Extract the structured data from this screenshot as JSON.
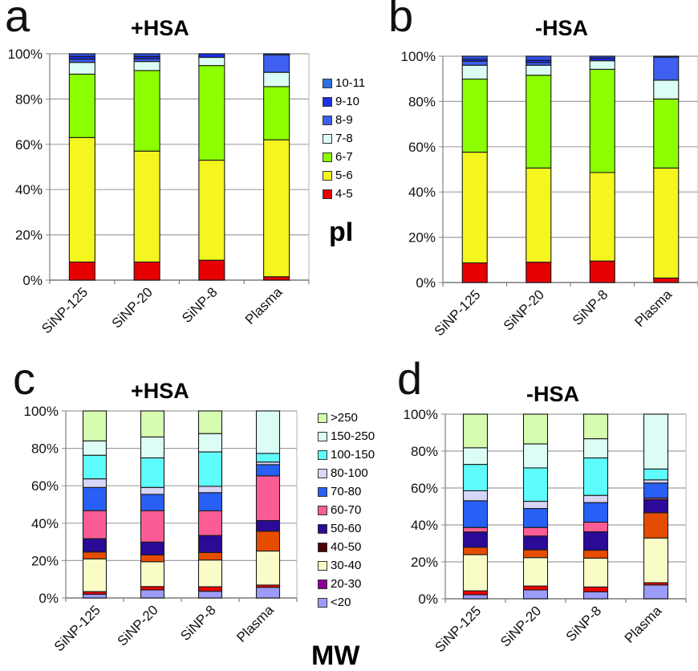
{
  "figure": {
    "panels": [
      {
        "letter": "a",
        "title": "+HSA"
      },
      {
        "letter": "b",
        "title": "-HSA"
      },
      {
        "letter": "c",
        "title": "+HSA"
      },
      {
        "letter": "d",
        "title": "-HSA"
      }
    ],
    "pi_label": "pI",
    "mw_label": "MW"
  },
  "legends": {
    "pi": [
      {
        "label": "10-11",
        "color": "#2f6fe0"
      },
      {
        "label": "9-10",
        "color": "#1a2fe6"
      },
      {
        "label": "8-9",
        "color": "#3f5ff0"
      },
      {
        "label": "7-8",
        "color": "#dcfcf6"
      },
      {
        "label": "6-7",
        "color": "#8cff00"
      },
      {
        "label": "5-6",
        "color": "#f5f51f"
      },
      {
        "label": "4-5",
        "color": "#e60000"
      }
    ],
    "mw": [
      {
        "label": ">250",
        "color": "#d6fcb0"
      },
      {
        "label": "150-250",
        "color": "#dcfcf6"
      },
      {
        "label": "100-150",
        "color": "#5ffcfc"
      },
      {
        "label": "80-100",
        "color": "#d8d6f8"
      },
      {
        "label": "70-80",
        "color": "#2860f5"
      },
      {
        "label": "60-70",
        "color": "#fc5c96"
      },
      {
        "label": "50-60",
        "color": "#2a0a96"
      },
      {
        "label": "40-50",
        "color": "#4a0000"
      },
      {
        "label": "30-40",
        "color": "#fafcc8"
      },
      {
        "label": "20-30",
        "color": "#8a0096"
      },
      {
        "label": "<20",
        "color": "#9c9cf8"
      }
    ]
  },
  "chart_data": [
    {
      "type": "bar",
      "stacked": true,
      "title": "+HSA",
      "panel": "a",
      "categories": [
        "SiNP-125",
        "SiNP-20",
        "SiNP-8",
        "Plasma"
      ],
      "ylabel": "",
      "xlabel": "",
      "ylim": [
        0,
        100
      ],
      "yticks": [
        "0%",
        "20%",
        "40%",
        "60%",
        "80%",
        "100%"
      ],
      "legend_title": "pI",
      "legend_position": "right",
      "grid": true,
      "series": [
        {
          "name": "4-5",
          "color": "#e60000",
          "values": [
            8,
            8,
            8.8,
            1.5
          ]
        },
        {
          "name": "5-6",
          "color": "#f5f51f",
          "values": [
            55,
            49,
            44.2,
            60.5
          ]
        },
        {
          "name": "6-7",
          "color": "#8cff00",
          "values": [
            28,
            35.6,
            41.8,
            23.5
          ]
        },
        {
          "name": "7-8",
          "color": "#dcfcf6",
          "values": [
            5.2,
            4,
            3.6,
            6.3
          ]
        },
        {
          "name": "8-9",
          "color": "#3f5ff0",
          "values": [
            1.4,
            1.2,
            0,
            7.7
          ]
        },
        {
          "name": "9-10",
          "color": "#1a2fe6",
          "values": [
            1.2,
            1,
            1.6,
            0
          ]
        },
        {
          "name": "10-11",
          "color": "#2f4fe8",
          "values": [
            1.2,
            1.2,
            0,
            0.5
          ]
        }
      ]
    },
    {
      "type": "bar",
      "stacked": true,
      "title": "-HSA",
      "panel": "b",
      "categories": [
        "SiNP-125",
        "SiNP-20",
        "SiNP-8",
        "Plasma"
      ],
      "ylabel": "",
      "xlabel": "",
      "ylim": [
        0,
        100
      ],
      "yticks": [
        "0%",
        "20%",
        "40%",
        "60%",
        "80%",
        "100%"
      ],
      "grid": true,
      "series": [
        {
          "name": "4-5",
          "color": "#e60000",
          "values": [
            8.7,
            9,
            9.5,
            2
          ]
        },
        {
          "name": "5-6",
          "color": "#f5f51f",
          "values": [
            48.9,
            41.6,
            39.1,
            48.6
          ]
        },
        {
          "name": "6-7",
          "color": "#8cff00",
          "values": [
            32.3,
            41,
            45.6,
            30.5
          ]
        },
        {
          "name": "7-8",
          "color": "#dcfcf6",
          "values": [
            6.1,
            4.4,
            3.8,
            8.3
          ]
        },
        {
          "name": "8-9",
          "color": "#3f5ff0",
          "values": [
            1.8,
            1.2,
            0,
            10.2
          ]
        },
        {
          "name": "9-10",
          "color": "#1a2fe6",
          "values": [
            0.8,
            1,
            1.2,
            0
          ]
        },
        {
          "name": "10-11",
          "color": "#2f4fe8",
          "values": [
            1.4,
            1.8,
            0.8,
            0.4
          ]
        }
      ]
    },
    {
      "type": "bar",
      "stacked": true,
      "title": "+HSA",
      "panel": "c",
      "categories": [
        "SiNP-125",
        "SiNP-20",
        "SiNP-8",
        "Plasma"
      ],
      "ylabel": "",
      "xlabel": "",
      "ylim": [
        0,
        100
      ],
      "yticks": [
        "0%",
        "20%",
        "40%",
        "60%",
        "80%",
        "100%"
      ],
      "legend_title": "MW",
      "legend_position": "right",
      "grid": true,
      "series": [
        {
          "name": "<20",
          "color": "#9c9cf8",
          "values": [
            2,
            4.3,
            3.6,
            5.7
          ]
        },
        {
          "name": "20-30",
          "color": "#f00000",
          "values": [
            1.4,
            1.8,
            2.4,
            1.2
          ]
        },
        {
          "name": "30-40",
          "color": "#fafcc8",
          "values": [
            17.5,
            13.3,
            14.3,
            18.2
          ]
        },
        {
          "name": "40-50",
          "color": "#e64d00",
          "values": [
            3.7,
            3.6,
            4,
            10.6
          ]
        },
        {
          "name": "50-60",
          "color": "#2a0a96",
          "values": [
            7.1,
            6.9,
            9.1,
            5.7
          ]
        },
        {
          "name": "60-70",
          "color": "#fc5c96",
          "values": [
            15,
            16.8,
            13.2,
            23.9
          ]
        },
        {
          "name": "70-80",
          "color": "#2860f5",
          "values": [
            12.4,
            8.7,
            9.7,
            6
          ]
        },
        {
          "name": "80-100",
          "color": "#d8d6f8",
          "values": [
            4.6,
            3.7,
            3.4,
            1.4
          ]
        },
        {
          "name": "100-150",
          "color": "#5ffcfc",
          "values": [
            12.6,
            15.8,
            18.4,
            4.6
          ]
        },
        {
          "name": "150-250",
          "color": "#dcfcf6",
          "values": [
            7.7,
            11.2,
            9.8,
            22.7
          ]
        },
        {
          "name": ">250",
          "color": "#d6fcb0",
          "values": [
            16,
            13.9,
            12.1,
            0
          ]
        }
      ]
    },
    {
      "type": "bar",
      "stacked": true,
      "title": "-HSA",
      "panel": "d",
      "categories": [
        "SiNP-125",
        "SiNP-20",
        "SiNP-8",
        "Plasma"
      ],
      "ylabel": "",
      "xlabel": "",
      "ylim": [
        0,
        100
      ],
      "yticks": [
        "0%",
        "20%",
        "40%",
        "60%",
        "80%",
        "100%"
      ],
      "grid": true,
      "series": [
        {
          "name": "<20",
          "color": "#9c9cf8",
          "values": [
            2.2,
            4.8,
            3.8,
            7.5
          ]
        },
        {
          "name": "20-30",
          "color": "#f00000",
          "values": [
            2.1,
            2.1,
            2.6,
            1.2
          ]
        },
        {
          "name": "30-40",
          "color": "#fafcc8",
          "values": [
            19.6,
            15.4,
            15.6,
            24.2
          ]
        },
        {
          "name": "40-50",
          "color": "#e64d00",
          "values": [
            4,
            4.2,
            4.3,
            13.7
          ]
        },
        {
          "name": "50-60",
          "color": "#2a0a96",
          "values": [
            8.3,
            7.5,
            10,
            7.2
          ]
        },
        {
          "name": "60-70",
          "color": "#fc5c96",
          "values": [
            2.4,
            4.6,
            5.2,
            0.8
          ]
        },
        {
          "name": "70-80",
          "color": "#2860f5",
          "values": [
            14.5,
            10.3,
            10.6,
            8.1
          ]
        },
        {
          "name": "80-100",
          "color": "#d8d6f8",
          "values": [
            5.4,
            3.9,
            3.9,
            1.7
          ]
        },
        {
          "name": "100-150",
          "color": "#5ffcfc",
          "values": [
            14.3,
            18.1,
            20.3,
            5.9
          ]
        },
        {
          "name": "150-250",
          "color": "#dcfcf6",
          "values": [
            9,
            13,
            10.4,
            29.7
          ]
        },
        {
          "name": ">250",
          "color": "#d6fcb0",
          "values": [
            18.2,
            16.1,
            13.3,
            0
          ]
        }
      ]
    }
  ]
}
